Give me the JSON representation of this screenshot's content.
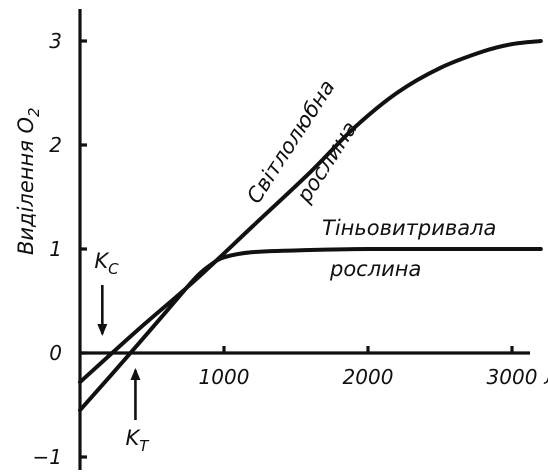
{
  "chart_data": {
    "type": "line",
    "ylabel": "Виділення O",
    "ylabel_sub": "2",
    "y_ticks": [
      "3",
      "2",
      "1",
      "0",
      "−1"
    ],
    "x_ticks": [
      "1000",
      "2000",
      "3000"
    ],
    "x_unit": "лк",
    "xlim": [
      0,
      3250
    ],
    "ylim": [
      -1,
      3.25
    ],
    "grid": false,
    "series": [
      {
        "name": "Світлолюбна рослина",
        "label_lines": [
          "Світлолюбна",
          "рослина"
        ],
        "x": [
          0,
          400,
          800,
          1200,
          1600,
          1900,
          2200,
          2500,
          2800,
          3000,
          3200
        ],
        "y": [
          -0.28,
          0.22,
          0.7,
          1.22,
          1.74,
          2.16,
          2.5,
          2.74,
          2.9,
          2.97,
          3.0
        ]
      },
      {
        "name": "Тіньовитривала рослина",
        "label_lines": [
          "Тіньовитривала",
          "рослина"
        ],
        "x": [
          0,
          300,
          600,
          800,
          900,
          1000,
          1200,
          1600,
          2000,
          2600,
          3200
        ],
        "y": [
          -0.55,
          -0.08,
          0.4,
          0.72,
          0.84,
          0.92,
          0.97,
          0.99,
          1.0,
          1.0,
          1.0
        ]
      }
    ],
    "annotations": [
      {
        "main": "K",
        "sub": "C",
        "x": 155
      },
      {
        "main": "K",
        "sub": "T",
        "x": 385
      }
    ]
  }
}
